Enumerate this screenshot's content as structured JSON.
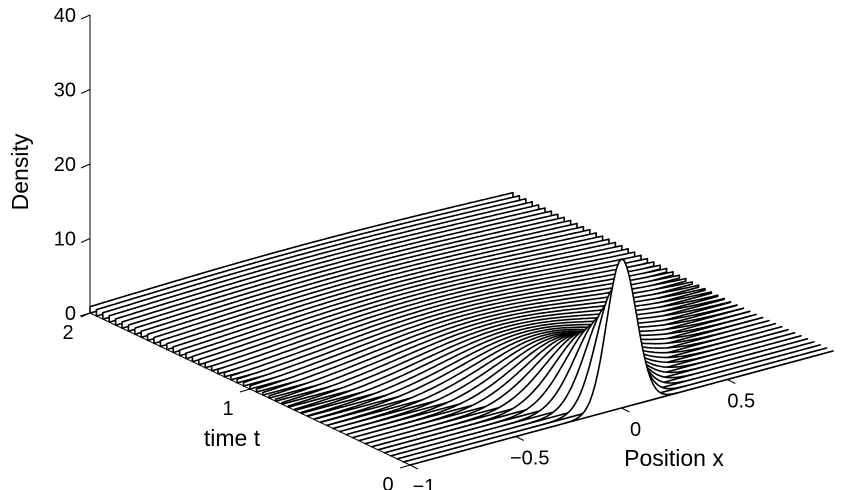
{
  "chart_data": {
    "type": "line",
    "subtype": "3d-waterfall",
    "title": "",
    "xlabel": "Position x",
    "ylabel": "time t",
    "zlabel": "Density",
    "xlim": [
      -1,
      1
    ],
    "ylim": [
      0,
      2
    ],
    "zlim": [
      0,
      40
    ],
    "x_ticks": [
      -1,
      -0.5,
      0,
      0.5
    ],
    "x_tick_labels": [
      "−1",
      "−0.5",
      "0",
      "0.5"
    ],
    "y_ticks": [
      0,
      1,
      2
    ],
    "y_tick_labels": [
      "0",
      "1",
      "2"
    ],
    "z_ticks": [
      0,
      10,
      20,
      30,
      40
    ],
    "z_tick_labels": [
      "0",
      "10",
      "20",
      "30",
      "40"
    ],
    "series_count": 51,
    "t_values": [
      0,
      0.04,
      0.08,
      0.12,
      0.16,
      0.2,
      0.24,
      0.28,
      0.32,
      0.36,
      0.4,
      0.44,
      0.48,
      0.52,
      0.56,
      0.6,
      0.64,
      0.68,
      0.72,
      0.76,
      0.8,
      0.84,
      0.88,
      0.92,
      0.96,
      1.0,
      1.04,
      1.08,
      1.12,
      1.16,
      1.2,
      1.24,
      1.28,
      1.32,
      1.36,
      1.4,
      1.44,
      1.48,
      1.52,
      1.56,
      1.6,
      1.64,
      1.68,
      1.72,
      1.76,
      1.8,
      1.84,
      1.88,
      1.92,
      1.96,
      2.0
    ],
    "x_values": [
      -1,
      -0.9,
      -0.8,
      -0.7,
      -0.6,
      -0.5,
      -0.4,
      -0.3,
      -0.2,
      -0.1,
      0,
      0.1,
      0.2,
      0.3,
      0.4,
      0.5,
      0.6,
      0.7,
      0.8,
      0.9,
      1
    ],
    "peak_density_at_t0": 20,
    "peak_position_at_t0": 0,
    "grid": false,
    "legend": "none"
  }
}
